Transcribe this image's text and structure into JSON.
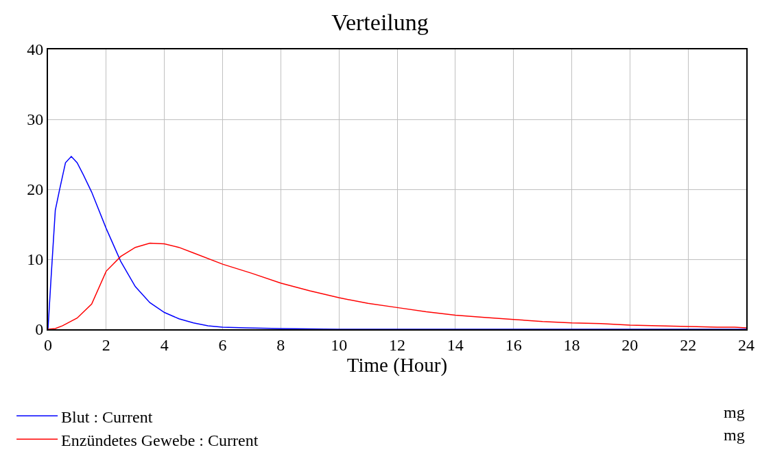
{
  "chart_data": {
    "type": "line",
    "title": "Verteilung",
    "xlabel": "Time (Hour)",
    "xlim": [
      0,
      24
    ],
    "xticks": [
      0,
      2,
      4,
      6,
      8,
      10,
      12,
      14,
      16,
      18,
      20,
      22,
      24
    ],
    "ylim": [
      0,
      40
    ],
    "yticks": [
      0,
      10,
      20,
      30,
      40
    ],
    "grid": true,
    "legend": "bottom",
    "marker": "none",
    "line_style": "solid",
    "annotations": [
      "mg",
      "mg"
    ],
    "series": [
      {
        "name": "Blut : Current",
        "color": "#0000ff",
        "x": [
          0,
          0.1,
          0.25,
          0.4,
          0.6,
          0.8,
          1,
          1.2,
          1.5,
          2,
          2.5,
          3,
          3.5,
          4,
          4.5,
          5,
          5.5,
          6,
          6.8,
          8,
          10,
          14,
          18,
          24
        ],
        "values": [
          0,
          7,
          17,
          20,
          23.8,
          24.7,
          23.8,
          22.2,
          19.6,
          14.4,
          9.7,
          6.1,
          3.8,
          2.4,
          1.5,
          0.9,
          0.5,
          0.3,
          0.2,
          0.1,
          0,
          0,
          0,
          0
        ]
      },
      {
        "name": "Enzündetes Gewebe : Current",
        "color": "#ff0000",
        "x": [
          0,
          0.25,
          0.5,
          1,
          1.5,
          2,
          2.5,
          3,
          3.5,
          4,
          4.5,
          5,
          6,
          7,
          8,
          9,
          10,
          11,
          12,
          13,
          14,
          15,
          16,
          17,
          18,
          19,
          20,
          21,
          22,
          23,
          23.6,
          24
        ],
        "values": [
          0,
          0.1,
          0.5,
          1.6,
          3.6,
          8.3,
          10.4,
          11.7,
          12.3,
          12.2,
          11.7,
          10.9,
          9.3,
          8,
          6.6,
          5.5,
          4.5,
          3.7,
          3.1,
          2.5,
          2,
          1.7,
          1.4,
          1.1,
          0.9,
          0.8,
          0.6,
          0.5,
          0.4,
          0.3,
          0.3,
          0.2
        ]
      }
    ]
  }
}
